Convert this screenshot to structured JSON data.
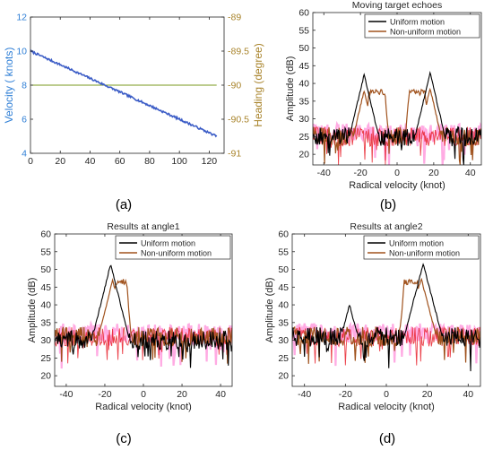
{
  "figure": {
    "panel_labels": [
      "(a)",
      "(b)",
      "(c)",
      "(d)"
    ]
  },
  "colors": {
    "velocity": "#3b5cc6",
    "heading": "#7a9a1c",
    "heading_axis": "#a8832a",
    "velocity_axis": "#2f7fd6",
    "uniform": "#000000",
    "nonuniform": "#a0521d",
    "noise_red": "#e8202a",
    "noise_pink": "#ff66cc"
  },
  "chart_data": [
    {
      "type": "line",
      "panel": "(a)",
      "title": "",
      "xlabel": "",
      "ylabel": "Velocity ( knots)",
      "y2label": "Heading (degree)",
      "xlim": [
        0,
        130
      ],
      "xticks": [
        0,
        20,
        40,
        60,
        80,
        100,
        120
      ],
      "ylim": [
        4,
        12
      ],
      "yticks": [
        4,
        6,
        8,
        10,
        12
      ],
      "y2lim": [
        -91,
        -89
      ],
      "y2ticks": [
        -91,
        -90.5,
        -90,
        -89.5,
        -89
      ],
      "y2ticklabels": [
        "-91",
        "-90.5",
        "-90",
        "-89.5",
        "-89"
      ],
      "grid": false,
      "series": [
        {
          "axis": "left",
          "x": [
            0,
            125
          ],
          "y": [
            10,
            5
          ]
        },
        {
          "axis": "right",
          "x": [
            0,
            125
          ],
          "y": [
            -90,
            -90
          ]
        }
      ]
    },
    {
      "type": "line",
      "panel": "(b)",
      "title": "Moving target echoes",
      "xlabel": "Radical velocity (knot)",
      "ylabel": "Amplitude (dB)",
      "xlim": [
        -46,
        46
      ],
      "xticks": [
        -40,
        -20,
        0,
        20,
        40
      ],
      "ylim": [
        17,
        60
      ],
      "yticks": [
        20,
        25,
        30,
        35,
        40,
        45,
        50,
        55,
        60
      ],
      "legend": "top-right",
      "grid": false,
      "series": [
        {
          "name": "Uniform motion",
          "peaks": [
            [
              -18,
              42.5
            ],
            [
              18,
              43
            ]
          ],
          "floor": 25
        },
        {
          "name": "Non-uniform motion",
          "peaks": [
            [
              -18,
              38
            ],
            [
              18,
              38.5
            ]
          ],
          "plateaus": [
            [
              -16,
              -6,
              37.5
            ],
            [
              6,
              16,
              37.5
            ]
          ],
          "floor": 25
        }
      ]
    },
    {
      "type": "line",
      "panel": "(c)",
      "title": "Results at angle1",
      "xlabel": "Radical velocity (knot)",
      "ylabel": "Amplitude (dB)",
      "xlim": [
        -46,
        46
      ],
      "xticks": [
        -40,
        -20,
        0,
        20,
        40
      ],
      "ylim": [
        17,
        60
      ],
      "yticks": [
        20,
        25,
        30,
        35,
        40,
        45,
        50,
        55,
        60
      ],
      "legend": "top-right",
      "grid": false,
      "series": [
        {
          "name": "Uniform motion",
          "peaks": [
            [
              -17,
              51.5
            ]
          ],
          "floor": 30
        },
        {
          "name": "Non-uniform motion",
          "peaks": [
            [
              -16,
              47
            ]
          ],
          "plateaus": [
            [
              -15,
              -8,
              46.5
            ]
          ],
          "floor": 31
        }
      ]
    },
    {
      "type": "line",
      "panel": "(d)",
      "title": "Results at angle2",
      "xlabel": "Radical velocity (knot)",
      "ylabel": "Amplitude (dB)",
      "xlim": [
        -46,
        46
      ],
      "xticks": [
        -40,
        -20,
        0,
        20,
        40
      ],
      "ylim": [
        17,
        60
      ],
      "yticks": [
        20,
        25,
        30,
        35,
        40,
        45,
        50,
        55,
        60
      ],
      "legend": "top-right",
      "grid": false,
      "series": [
        {
          "name": "Uniform motion",
          "peaks": [
            [
              18,
              51.5
            ],
            [
              -18,
              40
            ]
          ],
          "floor": 31
        },
        {
          "name": "Non-uniform motion",
          "peaks": [
            [
              17,
              47.5
            ]
          ],
          "plateaus": [
            [
              8,
              16,
              46.5
            ]
          ],
          "floor": 31
        }
      ]
    }
  ]
}
